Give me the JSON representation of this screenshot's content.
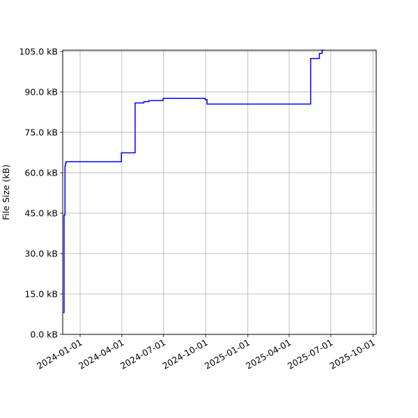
{
  "chart_data": {
    "type": "line",
    "title": "",
    "xlabel": "",
    "ylabel": "File Size (kB)",
    "x_axis_type": "date",
    "xlim": [
      "2023-11-24",
      "2025-10-08"
    ],
    "ylim": [
      0,
      105.5
    ],
    "grid": true,
    "line_color": "#0000ff",
    "x_ticks": [
      "2024-01-01",
      "2024-04-01",
      "2024-07-01",
      "2024-10-01",
      "2025-01-01",
      "2025-04-01",
      "2025-07-01",
      "2025-10-01"
    ],
    "y_ticks": [
      0,
      15,
      30,
      45,
      60,
      75,
      90,
      105
    ],
    "y_tick_labels": [
      "0.0 kB",
      "15.0 kB",
      "30.0 kB",
      "45.0 kB",
      "60.0 kB",
      "75.0 kB",
      "90.0 kB",
      "105.0 kB"
    ],
    "series": [
      {
        "x": [
          "2023-11-25",
          "2023-11-27",
          "2023-11-27",
          "2023-11-29",
          "2023-11-29",
          "2023-11-30",
          "2023-11-30",
          "2023-12-01",
          "2023-12-01",
          "2024-03-31",
          "2024-03-31",
          "2024-04-08",
          "2024-04-08",
          "2024-04-10",
          "2024-04-10",
          "2024-04-30",
          "2024-04-30",
          "2024-05-19",
          "2024-05-19",
          "2024-05-25",
          "2024-05-25",
          "2024-05-30",
          "2024-05-30",
          "2024-06-01",
          "2024-06-01",
          "2024-06-30",
          "2024-06-30",
          "2024-07-01",
          "2024-07-01",
          "2024-09-30",
          "2024-09-30",
          "2024-10-04",
          "2024-10-04",
          "2024-10-13",
          "2024-10-13",
          "2025-05-18",
          "2025-05-18",
          "2025-05-21",
          "2025-05-21",
          "2025-06-06",
          "2025-06-06",
          "2025-06-07",
          "2025-06-07",
          "2025-06-12",
          "2025-06-12",
          "2025-06-15",
          "2025-06-15",
          "2025-06-16"
        ],
        "y": [
          8.1,
          8.1,
          44.3,
          44.3,
          62.5,
          62.5,
          63.4,
          63.4,
          64.1,
          64.1,
          67.4,
          67.4,
          67.4,
          67.4,
          67.4,
          67.4,
          85.9,
          85.9,
          86.4,
          86.4,
          86.4,
          86.4,
          86.8,
          86.8,
          86.8,
          86.8,
          87.5,
          87.5,
          87.6,
          87.6,
          87.1,
          87.1,
          85.5,
          85.5,
          85.5,
          85.5,
          102.4,
          102.4,
          102.4,
          102.4,
          104.3,
          104.3,
          104.3,
          104.3,
          105.5,
          105.5,
          105.5,
          105.5
        ]
      }
    ]
  }
}
